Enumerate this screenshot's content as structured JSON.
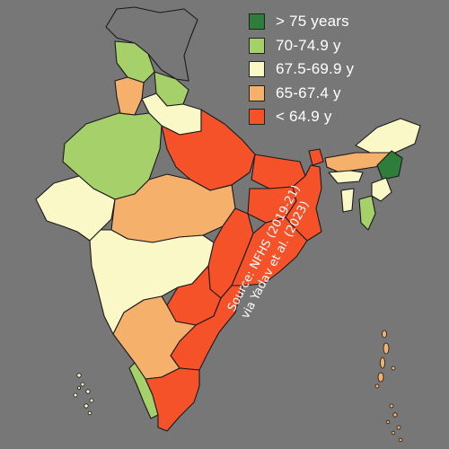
{
  "legend": {
    "items": [
      {
        "label": "> 75 years",
        "color": "#2e7d3a"
      },
      {
        "label": "70-74.9 y",
        "color": "#a6d06a"
      },
      {
        "label": "67.5-69.9 y",
        "color": "#fbf8c8"
      },
      {
        "label": "65-67.4 y",
        "color": "#f5b06c"
      },
      {
        "label": "< 64.9 y",
        "color": "#f5522a"
      }
    ]
  },
  "source": {
    "line1": "Source: NFHS (2019-21)",
    "line2": "via Yadav et al. (2023)"
  },
  "colors": {
    "background": "#777777",
    "outline": "#1a1a1a",
    "unknown_region": "#777777"
  }
}
